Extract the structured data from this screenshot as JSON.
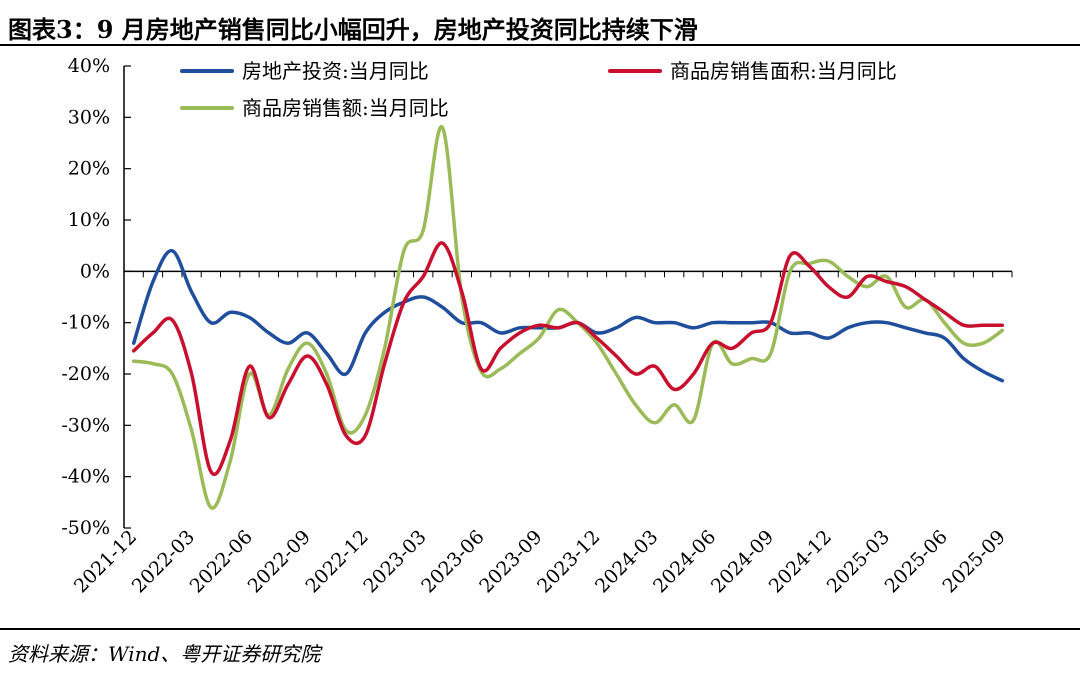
{
  "header": {
    "title": "图表3：9 月房地产销售同比小幅回升，房地产投资同比持续下滑"
  },
  "footer": {
    "source": "资料来源：Wind、粤开证券研究院"
  },
  "chart_data": {
    "type": "line",
    "title": "图表3：9 月房地产销售同比小幅回升，房地产投资同比持续下滑",
    "xlabel": "",
    "ylabel": "",
    "ylim": [
      -50,
      40
    ],
    "yticks": [
      40,
      30,
      20,
      10,
      0,
      -10,
      -20,
      -30,
      -40,
      -50
    ],
    "ytick_labels": [
      "40%",
      "30%",
      "20%",
      "10%",
      "0%",
      "-10%",
      "-20%",
      "-30%",
      "-40%",
      "-50%"
    ],
    "xtick_labels": [
      "2021-12",
      "2022-03",
      "2022-06",
      "2022-09",
      "2022-12",
      "2023-03",
      "2023-06",
      "2023-09",
      "2023-12",
      "2024-03",
      "2024-06",
      "2024-09",
      "2024-12",
      "2025-03",
      "2025-06",
      "2025-09"
    ],
    "x": [
      "2021-12",
      "2022-01",
      "2022-02",
      "2022-03",
      "2022-04",
      "2022-05",
      "2022-06",
      "2022-07",
      "2022-08",
      "2022-09",
      "2022-10",
      "2022-11",
      "2022-12",
      "2023-01",
      "2023-02",
      "2023-03",
      "2023-04",
      "2023-05",
      "2023-06",
      "2023-07",
      "2023-08",
      "2023-09",
      "2023-10",
      "2023-11",
      "2023-12",
      "2024-01",
      "2024-02",
      "2024-03",
      "2024-04",
      "2024-05",
      "2024-06",
      "2024-07",
      "2024-08",
      "2024-09",
      "2024-10",
      "2024-11",
      "2024-12",
      "2025-01",
      "2025-02",
      "2025-03",
      "2025-04",
      "2025-05",
      "2025-06",
      "2025-07",
      "2025-08",
      "2025-09"
    ],
    "grid": false,
    "legend_position": "top",
    "series": [
      {
        "name": "房地产投资:当月同比",
        "color": "#1f4e9c",
        "values": [
          -14,
          -2,
          4,
          -4,
          -10,
          -8,
          -9,
          -12,
          -14,
          -12,
          -16,
          -20,
          -12,
          -8,
          -6,
          -5,
          -7,
          -10,
          -10,
          -12,
          -11,
          -11,
          -11,
          -10,
          -12,
          -11,
          -9,
          -10,
          -10,
          -11,
          -10,
          -10,
          -10,
          -10,
          -12,
          -12,
          -13,
          -11,
          -10,
          -10,
          -11,
          -12,
          -13,
          -17,
          -19.5,
          -21.3
        ]
      },
      {
        "name": "商品房销售面积:当月同比",
        "color": "#c8102e",
        "values": [
          -15.5,
          -12,
          -9.5,
          -20,
          -39,
          -33,
          -18.5,
          -28.5,
          -22,
          -16.5,
          -22,
          -32,
          -32,
          -18,
          -6,
          -1,
          5.5,
          -4,
          -19,
          -15,
          -12,
          -10.5,
          -11,
          -10,
          -13,
          -16.5,
          -20,
          -18.5,
          -23,
          -20,
          -14,
          -15,
          -12,
          -10,
          3,
          1,
          -3,
          -5,
          -1,
          -2,
          -3,
          -5.5,
          -8,
          -10.5,
          -10.5,
          -10.5
        ]
      },
      {
        "name": "商品房销售额:当月同比",
        "color": "#9bbb59",
        "values": [
          -17.5,
          -18,
          -20,
          -31,
          -46,
          -37,
          -20,
          -28,
          -19,
          -14,
          -20,
          -31,
          -28,
          -15,
          4,
          8,
          28,
          -5,
          -19.5,
          -19,
          -16,
          -13,
          -7.5,
          -10,
          -14,
          -20,
          -26,
          -29.5,
          -26,
          -29,
          -14,
          -18,
          -17,
          -16,
          0,
          1.5,
          2,
          -1,
          -3,
          -1,
          -7,
          -5.5,
          -10,
          -14,
          -14,
          -11.5
        ]
      }
    ]
  }
}
